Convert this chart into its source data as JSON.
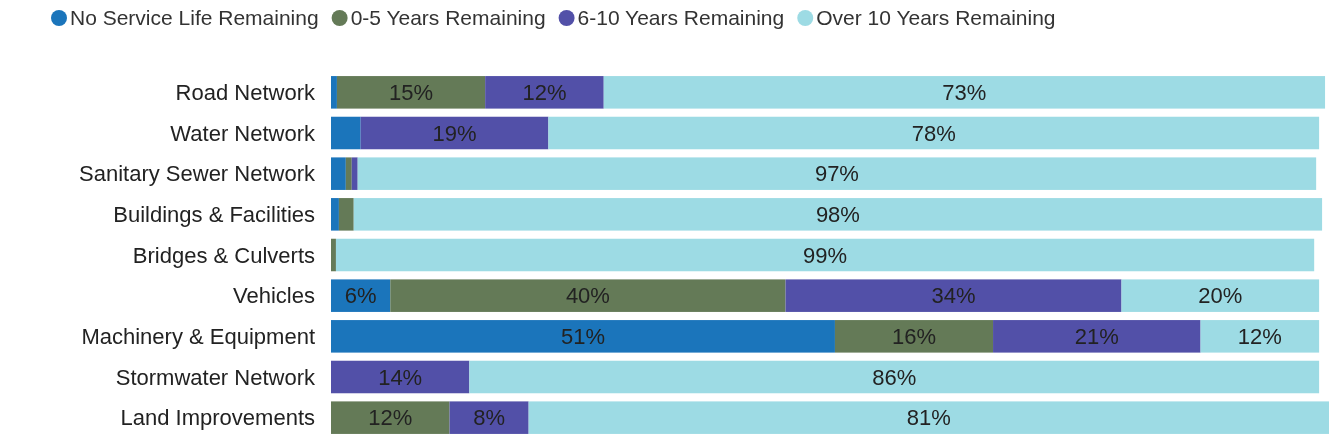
{
  "chart_data": {
    "type": "bar",
    "orientation": "horizontal",
    "stacked": true,
    "legend": "top",
    "categories": [
      "Road Network",
      "Water Network",
      "Sanitary Sewer Network",
      "Buildings & Facilities",
      "Bridges & Culverts",
      "Vehicles",
      "Machinery & Equipment",
      "Stormwater Network",
      "Land Improvements"
    ],
    "series": [
      {
        "name": "No Service Life Remaining",
        "color": "#1b75bb",
        "values": [
          0.6,
          3,
          1.5,
          0.8,
          null,
          6,
          51,
          null,
          null
        ],
        "value_labels": [
          null,
          null,
          null,
          null,
          null,
          "6%",
          "51%",
          null,
          null
        ]
      },
      {
        "name": "0-5 Years Remaining",
        "color": "#647a57",
        "values": [
          15,
          null,
          0.6,
          1.5,
          0.5,
          40,
          16,
          null,
          12
        ],
        "value_labels": [
          "15%",
          null,
          null,
          null,
          null,
          "40%",
          "16%",
          null,
          "12%"
        ]
      },
      {
        "name": "6-10 Years Remaining",
        "color": "#5250a8",
        "values": [
          12,
          19,
          0.6,
          null,
          null,
          34,
          21,
          14,
          8
        ],
        "value_labels": [
          "12%",
          "19%",
          null,
          null,
          null,
          "34%",
          "21%",
          "14%",
          "8%"
        ]
      },
      {
        "name": "Over 10 Years Remaining",
        "color": "#9ddbe4",
        "values": [
          73,
          78,
          97,
          98,
          99,
          20,
          12,
          86,
          81
        ],
        "value_labels": [
          "73%",
          "78%",
          "97%",
          "98%",
          "99%",
          "20%",
          "12%",
          "86%",
          "81%"
        ]
      }
    ]
  }
}
